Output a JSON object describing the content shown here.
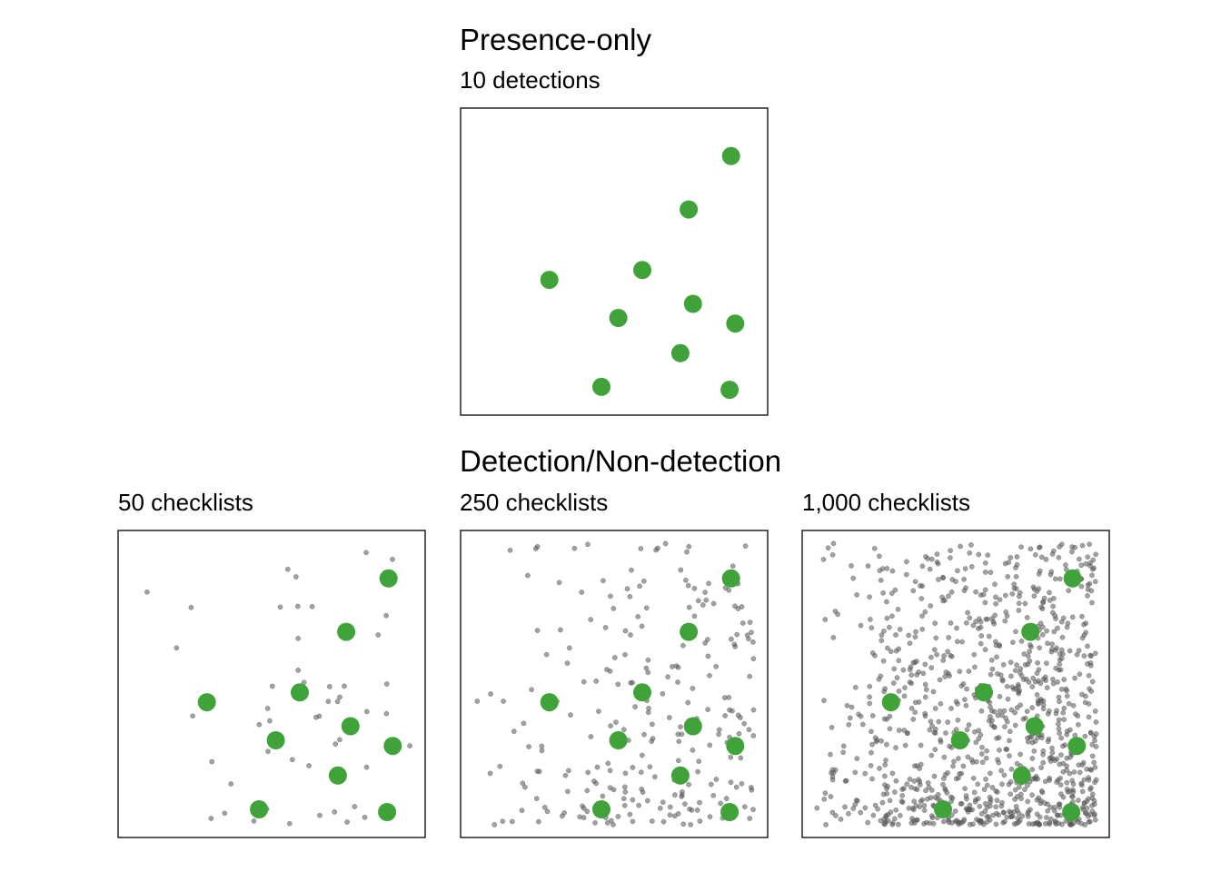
{
  "colors": {
    "detection": "#3fa33a",
    "checklist": "#555555",
    "frame": "#000000"
  },
  "chart_data": [
    {
      "type": "scatter",
      "title": "Presence-only",
      "subtitle": "10 detections",
      "xlim": [
        0,
        1
      ],
      "ylim": [
        0,
        1
      ],
      "grid": false,
      "checklists": [],
      "detections": [
        [
          0.915,
          0.875
        ],
        [
          0.765,
          0.685
        ],
        [
          0.27,
          0.435
        ],
        [
          0.6,
          0.47
        ],
        [
          0.78,
          0.35
        ],
        [
          0.515,
          0.3
        ],
        [
          0.93,
          0.28
        ],
        [
          0.735,
          0.175
        ],
        [
          0.455,
          0.055
        ],
        [
          0.91,
          0.045
        ]
      ]
    },
    {
      "type": "scatter",
      "title": "Detection/Non-detection",
      "subtitle": "50 checklists",
      "xlim": [
        0,
        1
      ],
      "ylim": [
        0,
        1
      ],
      "grid": false,
      "n_checklists": 50,
      "seed": 11,
      "detections": [
        [
          0.915,
          0.875
        ],
        [
          0.765,
          0.685
        ],
        [
          0.27,
          0.435
        ],
        [
          0.6,
          0.47
        ],
        [
          0.78,
          0.35
        ],
        [
          0.515,
          0.3
        ],
        [
          0.93,
          0.28
        ],
        [
          0.735,
          0.175
        ],
        [
          0.455,
          0.055
        ],
        [
          0.91,
          0.045
        ]
      ]
    },
    {
      "type": "scatter",
      "subtitle": "250 checklists",
      "xlim": [
        0,
        1
      ],
      "ylim": [
        0,
        1
      ],
      "grid": false,
      "n_checklists": 250,
      "seed": 29,
      "detections": [
        [
          0.915,
          0.875
        ],
        [
          0.765,
          0.685
        ],
        [
          0.27,
          0.435
        ],
        [
          0.6,
          0.47
        ],
        [
          0.78,
          0.35
        ],
        [
          0.515,
          0.3
        ],
        [
          0.93,
          0.28
        ],
        [
          0.735,
          0.175
        ],
        [
          0.455,
          0.055
        ],
        [
          0.91,
          0.045
        ]
      ]
    },
    {
      "type": "scatter",
      "subtitle": "1,000 checklists",
      "xlim": [
        0,
        1
      ],
      "ylim": [
        0,
        1
      ],
      "grid": false,
      "n_checklists": 1000,
      "seed": 47,
      "detections": [
        [
          0.915,
          0.875
        ],
        [
          0.765,
          0.685
        ],
        [
          0.27,
          0.435
        ],
        [
          0.6,
          0.47
        ],
        [
          0.78,
          0.35
        ],
        [
          0.515,
          0.3
        ],
        [
          0.93,
          0.28
        ],
        [
          0.735,
          0.175
        ],
        [
          0.455,
          0.055
        ],
        [
          0.91,
          0.045
        ]
      ]
    }
  ]
}
